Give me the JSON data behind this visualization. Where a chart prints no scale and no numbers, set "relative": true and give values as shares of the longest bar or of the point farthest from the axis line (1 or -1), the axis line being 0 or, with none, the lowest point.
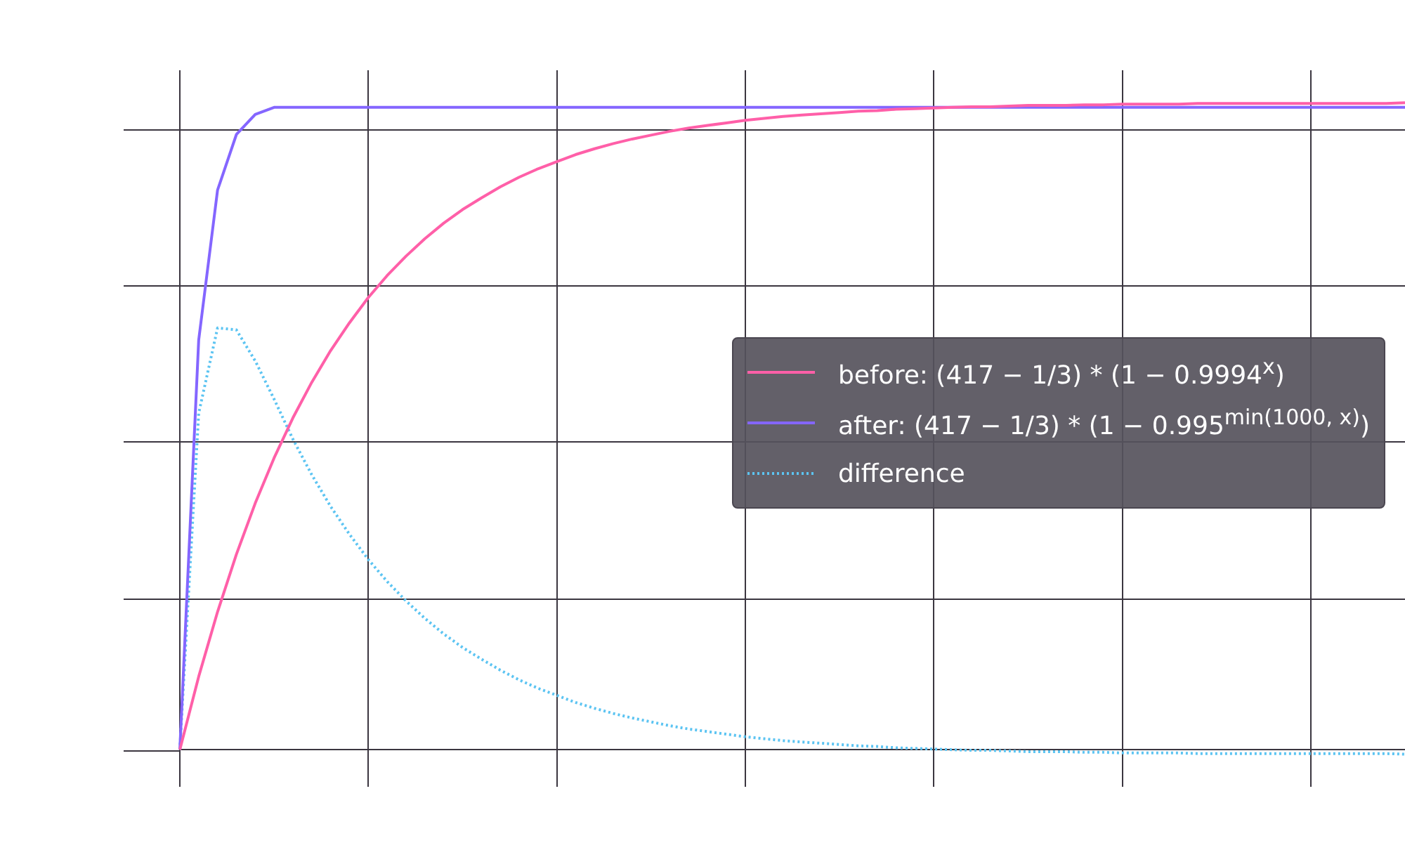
{
  "chart_data": {
    "type": "line",
    "relative": true,
    "grid": true,
    "legend": "right",
    "marker": "none",
    "categories": [
      null,
      null,
      null,
      null,
      null,
      null,
      null,
      null,
      null,
      null,
      null,
      null,
      null,
      null,
      null,
      null,
      null,
      null,
      null,
      null,
      null,
      null,
      null,
      null,
      null,
      null,
      null,
      null,
      null,
      null,
      null,
      null,
      null,
      null,
      null,
      null,
      null,
      null,
      null,
      null,
      null,
      null,
      null,
      null,
      null,
      null,
      null,
      null,
      null,
      null,
      null,
      null,
      null,
      null,
      null,
      null,
      null,
      null,
      null,
      null,
      null,
      null,
      null,
      null,
      null,
      null
    ],
    "series": [
      {
        "name": "before: (417 − 1/3) * (1 − 0.9994$^{x}$)",
        "color": "#ff5fa8",
        "line_style": "solid",
        "values": [
          0,
          0.113,
          0.213,
          0.302,
          0.381,
          0.451,
          0.513,
          0.568,
          0.617,
          0.66,
          0.699,
          0.733,
          0.763,
          0.79,
          0.814,
          0.835,
          0.853,
          0.87,
          0.885,
          0.898,
          0.909,
          0.92,
          0.929,
          0.937,
          0.944,
          0.95,
          0.956,
          0.961,
          0.965,
          0.969,
          0.973,
          0.976,
          0.979,
          0.981,
          0.983,
          0.985,
          0.987,
          0.988,
          0.99,
          0.991,
          0.992,
          0.993,
          0.994,
          0.994,
          0.995,
          0.996,
          0.996,
          0.996,
          0.997,
          0.997,
          0.998,
          0.998,
          0.998,
          0.998,
          0.999,
          0.999,
          0.999,
          0.999,
          0.999,
          0.999,
          0.999,
          0.999,
          0.999,
          0.999,
          0.999,
          1
        ]
      },
      {
        "name": "after: (417 − 1/3) * (1 − 0.995$^{min(1000, x)}$)",
        "color": "#8466ff",
        "line_style": "solid",
        "values": [
          0,
          0.633,
          0.865,
          0.951,
          0.982,
          0.993,
          0.993,
          0.993,
          0.993,
          0.993,
          0.993,
          0.993,
          0.993,
          0.993,
          0.993,
          0.993,
          0.993,
          0.993,
          0.993,
          0.993,
          0.993,
          0.993,
          0.993,
          0.993,
          0.993,
          0.993,
          0.993,
          0.993,
          0.993,
          0.993,
          0.993,
          0.993,
          0.993,
          0.993,
          0.993,
          0.993,
          0.993,
          0.993,
          0.993,
          0.993,
          0.993,
          0.993,
          0.993,
          0.993,
          0.993,
          0.993,
          0.993,
          0.993,
          0.993,
          0.993,
          0.993,
          0.993,
          0.993,
          0.993,
          0.993,
          0.993,
          0.993,
          0.993,
          0.993,
          0.993,
          0.993,
          0.993,
          0.993,
          0.993,
          0.993,
          0.993
        ]
      },
      {
        "name": "difference",
        "color": "#5cc4f2",
        "line_style": "dotted",
        "values": [
          0,
          0.52,
          0.652,
          0.649,
          0.601,
          0.542,
          0.48,
          0.425,
          0.376,
          0.333,
          0.294,
          0.26,
          0.23,
          0.203,
          0.179,
          0.158,
          0.14,
          0.123,
          0.108,
          0.095,
          0.084,
          0.073,
          0.064,
          0.056,
          0.049,
          0.043,
          0.037,
          0.032,
          0.028,
          0.024,
          0.02,
          0.017,
          0.014,
          0.012,
          0.01,
          0.008,
          0.006,
          0.005,
          0.003,
          0.002,
          0.001,
          0,
          -0.001,
          -0.001,
          -0.002,
          -0.003,
          -0.003,
          -0.003,
          -0.004,
          -0.004,
          -0.005,
          -0.005,
          -0.005,
          -0.005,
          -0.006,
          -0.006,
          -0.006,
          -0.006,
          -0.006,
          -0.006,
          -0.006,
          -0.006,
          -0.006,
          -0.006,
          -0.006,
          -0.007
        ]
      }
    ]
  }
}
